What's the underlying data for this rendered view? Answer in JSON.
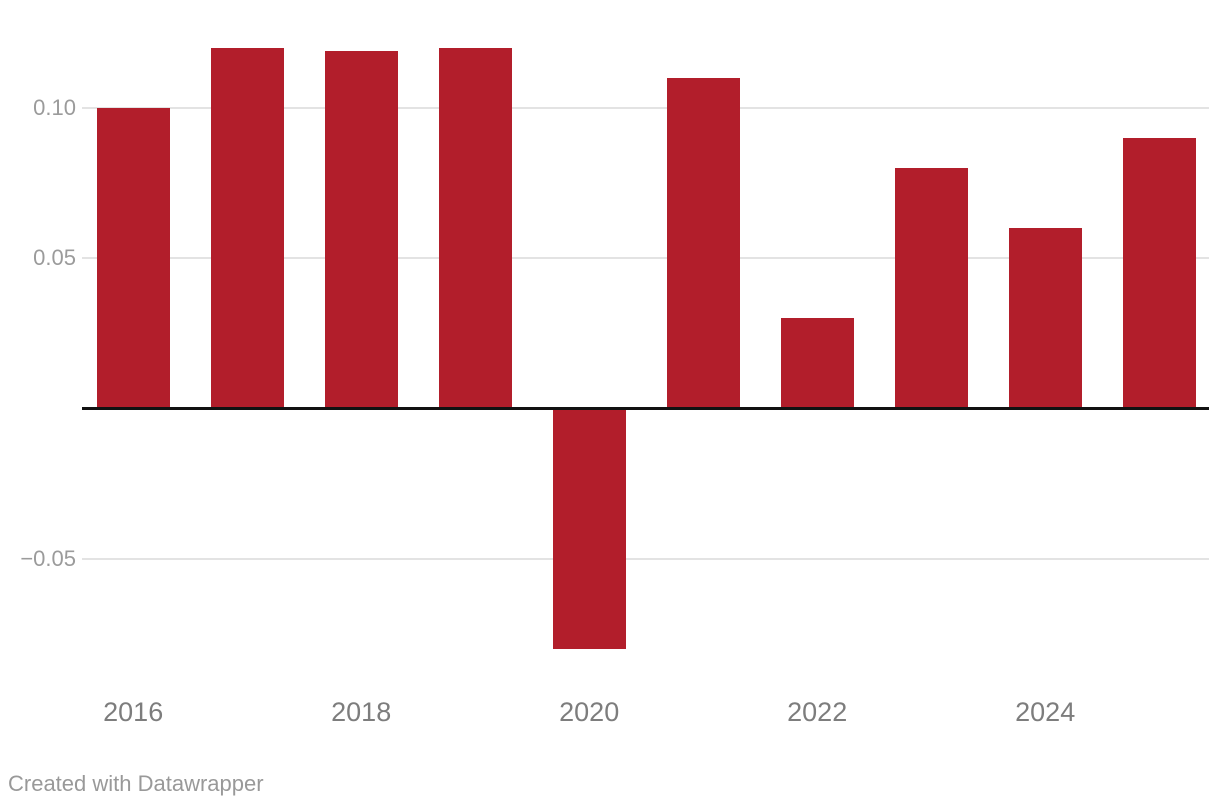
{
  "chart_data": {
    "type": "bar",
    "title": "",
    "xlabel": "",
    "ylabel": "",
    "categories": [
      "2016",
      "2017",
      "2018",
      "2019",
      "2020",
      "2021",
      "2022",
      "2023",
      "2024",
      "2025"
    ],
    "values": [
      0.1,
      0.12,
      0.119,
      0.12,
      -0.08,
      0.11,
      0.03,
      0.08,
      0.06,
      0.09
    ],
    "ylim": [
      -0.09,
      0.136
    ],
    "grid": "horizontal",
    "legend": "none",
    "y_ticks": [
      {
        "value": 0.1,
        "label": "0.10"
      },
      {
        "value": 0.05,
        "label": "0.05"
      },
      {
        "value": -0.05,
        "label": "−0.05"
      }
    ],
    "x_ticks": [
      {
        "index": 0,
        "label": "2016"
      },
      {
        "index": 2,
        "label": "2018"
      },
      {
        "index": 4,
        "label": "2020"
      },
      {
        "index": 6,
        "label": "2022"
      },
      {
        "index": 8,
        "label": "2024"
      }
    ]
  },
  "colors": {
    "background": "#ffffff",
    "bar": "#b21e2b",
    "gridline": "#e3e3e3",
    "zero_axis": "#121212",
    "y_label": "#9b9b9b",
    "x_label": "#7d7d7d",
    "credit": "#999999"
  },
  "footer": {
    "credit": "Created with Datawrapper"
  }
}
